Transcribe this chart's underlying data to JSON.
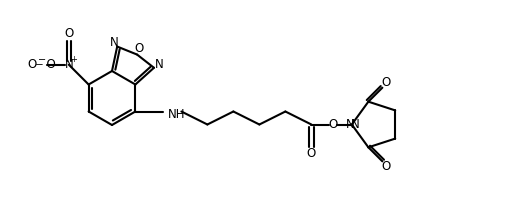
{
  "bg_color": "#ffffff",
  "lc": "#000000",
  "lw": 1.5,
  "fs": 8.5,
  "figsize": [
    5.3,
    2.08
  ],
  "dpi": 100,
  "xlim": [
    0,
    530
  ],
  "ylim": [
    0,
    208
  ]
}
